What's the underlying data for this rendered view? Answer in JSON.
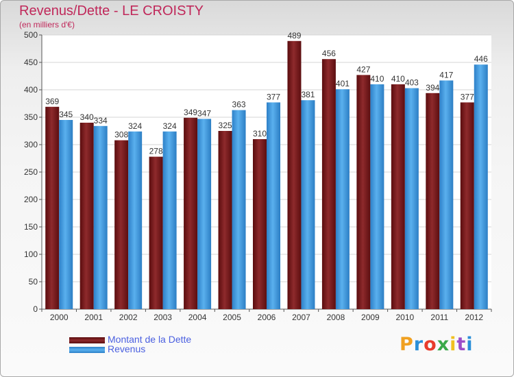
{
  "title": "Revenus/Dette - LE CROISTY",
  "subtitle": "(en milliers d'€)",
  "logo_text": "Proxiti",
  "colors": {
    "title": "#c0285a",
    "dette": "#7a1a1c",
    "revenus": "#3d98df",
    "legend_text": "#4a5fe0",
    "grid": "#d5d5d5"
  },
  "chart_data": {
    "type": "bar",
    "categories": [
      "2000",
      "2001",
      "2002",
      "2003",
      "2004",
      "2005",
      "2006",
      "2007",
      "2008",
      "2009",
      "2010",
      "2011",
      "2012"
    ],
    "series": [
      {
        "name": "Montant de la Dette",
        "values": [
          369,
          340,
          308,
          278,
          349,
          325,
          310,
          489,
          456,
          427,
          410,
          394,
          377
        ]
      },
      {
        "name": "Revenus",
        "values": [
          345,
          334,
          324,
          324,
          347,
          363,
          377,
          381,
          401,
          410,
          403,
          417,
          446
        ]
      }
    ],
    "ylim": [
      0,
      500
    ],
    "yticks": [
      0,
      50,
      100,
      150,
      200,
      250,
      300,
      350,
      400,
      450,
      500
    ],
    "grid": true,
    "legend_position": "bottom-left"
  }
}
